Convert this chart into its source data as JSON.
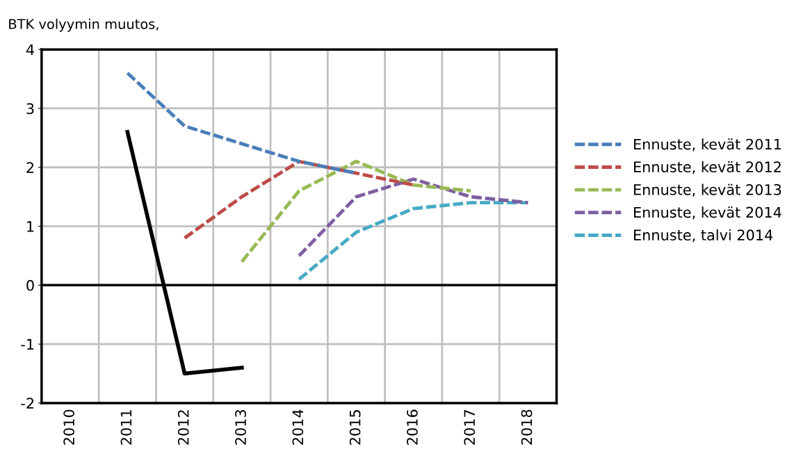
{
  "chart_data": {
    "type": "line",
    "ylabel": "BTK volyymin muutos,",
    "categories": [
      "2010",
      "2011",
      "2012",
      "2013",
      "2014",
      "2015",
      "2016",
      "2017",
      "2018"
    ],
    "ylim": [
      -2,
      4
    ],
    "yticks": [
      -2,
      -1,
      0,
      1,
      2,
      3,
      4
    ],
    "grid": true,
    "legend": "right",
    "line_style": "dashed",
    "series": [
      {
        "color": "#000000",
        "line_style": "solid",
        "values": [
          null,
          2.6,
          -1.5,
          -1.4,
          null,
          null,
          null,
          null,
          null
        ]
      },
      {
        "name": "Ennuste, kevät 2011",
        "color": "#4a7ebb",
        "values": [
          null,
          3.6,
          2.7,
          2.4,
          2.1,
          1.9,
          null,
          null,
          null
        ]
      },
      {
        "name": "Ennuste, kevät 2012",
        "color": "#be4b48",
        "values": [
          null,
          null,
          0.8,
          1.5,
          2.1,
          1.9,
          1.7,
          null,
          null
        ]
      },
      {
        "name": "Ennuste, kevät 2013",
        "color": "#98b954",
        "values": [
          null,
          null,
          null,
          0.4,
          1.6,
          2.1,
          1.7,
          1.6,
          null
        ]
      },
      {
        "name": "Ennuste, kevät 2014",
        "color": "#7d60a0",
        "values": [
          null,
          null,
          null,
          null,
          0.5,
          1.5,
          1.8,
          1.5,
          1.4
        ]
      },
      {
        "name": "Ennuste, talvi 2014",
        "color": "#46aac5",
        "values": [
          null,
          null,
          null,
          null,
          0.1,
          0.9,
          1.3,
          1.4,
          1.4
        ]
      }
    ]
  }
}
